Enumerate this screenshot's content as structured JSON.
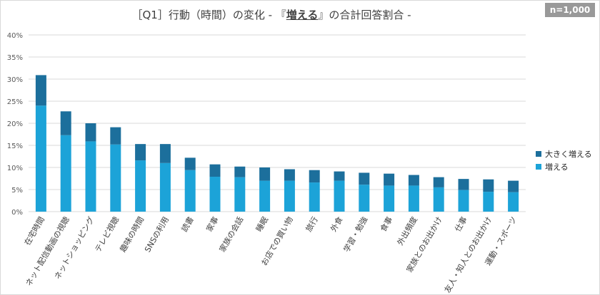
{
  "title": {
    "before": "［Q1］行動（時間）の変化 - 『",
    "emph": "増える",
    "after": "』の合計回答割合 -"
  },
  "badge": "n=1,000",
  "colors": {
    "big_increase": "#1C6F9C",
    "increase": "#1CA3D8",
    "grid": "#d9d9d9",
    "axis_text": "#595959"
  },
  "chart_data": {
    "type": "bar",
    "stacked": true,
    "categories": [
      "在宅時間",
      "ネット配信動画の視聴",
      "ネットショッピング",
      "テレビ視聴",
      "趣味の時間",
      "SNSの利用",
      "読書",
      "家事",
      "家族の会話",
      "睡眠",
      "お店での買い物",
      "旅行",
      "外食",
      "学習・勉強",
      "食事",
      "外出頻度",
      "家族とのお出かけ",
      "仕事",
      "友人・知人とのお出かけ",
      "運動・スポーツ"
    ],
    "series": [
      {
        "name": "増える",
        "values": [
          24.0,
          17.3,
          15.9,
          15.2,
          11.6,
          11.0,
          9.4,
          7.9,
          7.8,
          7.0,
          7.0,
          6.6,
          7.0,
          6.1,
          5.9,
          5.9,
          5.5,
          4.9,
          4.5,
          4.4
        ]
      },
      {
        "name": "大きく増える",
        "values": [
          6.9,
          5.4,
          4.1,
          3.9,
          3.7,
          4.3,
          2.8,
          2.8,
          2.4,
          3.0,
          2.6,
          2.8,
          2.1,
          2.7,
          2.7,
          2.4,
          2.3,
          2.5,
          2.8,
          2.6
        ]
      }
    ],
    "ylim": [
      0,
      40
    ],
    "yticks": [
      "0%",
      "5%",
      "10%",
      "15%",
      "20%",
      "25%",
      "30%",
      "35%",
      "40%"
    ],
    "legend": [
      "大きく増える",
      "増える"
    ],
    "legend_position": "right",
    "grid": true
  }
}
